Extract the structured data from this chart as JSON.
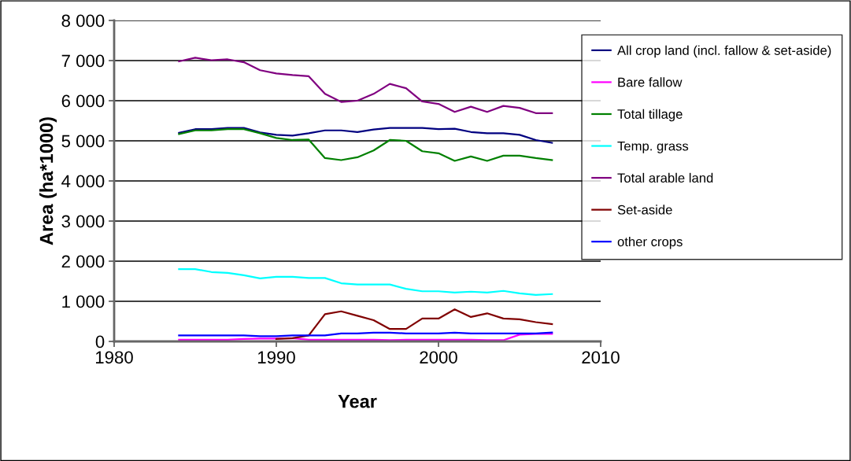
{
  "chart_data": {
    "type": "line",
    "xlabel": "Year",
    "ylabel": "Area (ha*1000)",
    "x": [
      1984,
      1985,
      1986,
      1987,
      1988,
      1989,
      1990,
      1991,
      1992,
      1993,
      1994,
      1995,
      1996,
      1997,
      1998,
      1999,
      2000,
      2001,
      2002,
      2003,
      2004,
      2005,
      2006,
      2007
    ],
    "series": [
      {
        "name": "All crop land (incl. fallow & set-aside)",
        "color": "#000080",
        "values": [
          5200,
          5290,
          5290,
          5320,
          5320,
          5210,
          5150,
          5130,
          5190,
          5260,
          5260,
          5220,
          5280,
          5320,
          5320,
          5320,
          5290,
          5300,
          5220,
          5190,
          5190,
          5150,
          5020,
          4950
        ]
      },
      {
        "name": "Bare fallow",
        "color": "#ff00ff",
        "values": [
          40,
          40,
          40,
          40,
          60,
          70,
          70,
          80,
          40,
          40,
          40,
          40,
          40,
          30,
          40,
          40,
          40,
          40,
          40,
          30,
          30,
          170,
          190,
          190
        ]
      },
      {
        "name": "Total tillage",
        "color": "#008000",
        "values": [
          5170,
          5260,
          5260,
          5290,
          5290,
          5190,
          5070,
          5020,
          5030,
          4570,
          4520,
          4590,
          4760,
          5020,
          5000,
          4740,
          4690,
          4500,
          4610,
          4500,
          4630,
          4630,
          4570,
          4520
        ]
      },
      {
        "name": "Temp. grass",
        "color": "#00ffff",
        "values": [
          1800,
          1800,
          1730,
          1710,
          1650,
          1570,
          1610,
          1610,
          1580,
          1580,
          1450,
          1420,
          1420,
          1420,
          1310,
          1250,
          1250,
          1220,
          1240,
          1220,
          1260,
          1200,
          1160,
          1180
        ]
      },
      {
        "name": "Total arable land",
        "color": "#800080",
        "values": [
          6980,
          7070,
          7010,
          7030,
          6960,
          6760,
          6680,
          6640,
          6610,
          6170,
          5970,
          6000,
          6170,
          6420,
          6310,
          5980,
          5920,
          5720,
          5850,
          5720,
          5870,
          5820,
          5690,
          5690
        ]
      },
      {
        "name": "Set-aside",
        "color": "#800000",
        "values": [
          null,
          null,
          null,
          null,
          null,
          null,
          60,
          80,
          150,
          680,
          750,
          640,
          530,
          310,
          310,
          570,
          570,
          800,
          610,
          700,
          570,
          550,
          480,
          430
        ]
      },
      {
        "name": "other crops",
        "color": "#0000ff",
        "values": [
          150,
          150,
          150,
          150,
          150,
          130,
          130,
          150,
          150,
          150,
          200,
          200,
          220,
          220,
          200,
          200,
          200,
          220,
          200,
          200,
          200,
          200,
          200,
          220
        ]
      }
    ],
    "xlim": [
      1980,
      2010
    ],
    "xticks": [
      1980,
      1990,
      2000,
      2010
    ],
    "ylim": [
      0,
      8000
    ],
    "yticks": [
      {
        "value": 0,
        "label": "0"
      },
      {
        "value": 1000,
        "label": "1 000"
      },
      {
        "value": 2000,
        "label": "2 000"
      },
      {
        "value": 3000,
        "label": "3 000"
      },
      {
        "value": 4000,
        "label": "4 000"
      },
      {
        "value": 5000,
        "label": "5 000"
      },
      {
        "value": 6000,
        "label": "6 000"
      },
      {
        "value": 7000,
        "label": "7 000"
      },
      {
        "value": 8000,
        "label": "8 000"
      }
    ],
    "grid": "y",
    "legend": "right",
    "marker": "none",
    "line_style": "solid"
  }
}
